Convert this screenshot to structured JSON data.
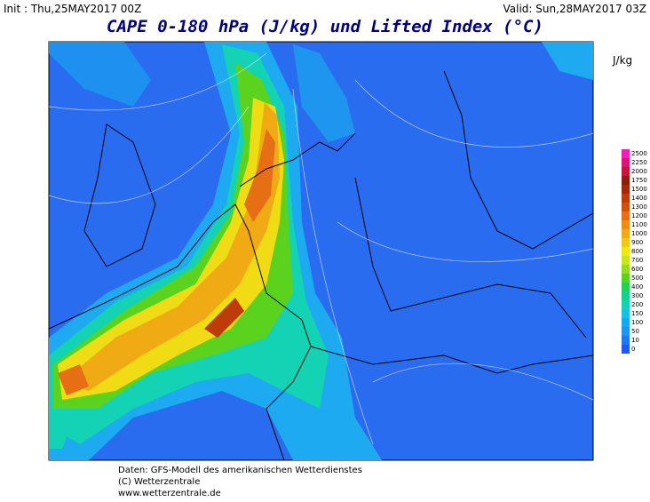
{
  "header": {
    "init": "Init : Thu,25MAY2017 00Z",
    "valid": "Valid: Sun,28MAY2017 03Z",
    "title": "CAPE 0-180 hPa (J/kg) und Lifted Index (°C)"
  },
  "legend": {
    "unit": "J/kg",
    "levels": [
      "0",
      "10",
      "50",
      "100",
      "150",
      "200",
      "300",
      "400",
      "500",
      "600",
      "700",
      "800",
      "900",
      "1000",
      "1100",
      "1200",
      "1300",
      "1400",
      "1500",
      "1750",
      "2000",
      "2250",
      "2500"
    ],
    "colors": [
      "#1e5af0",
      "#1e78f0",
      "#1e96f0",
      "#14aaf0",
      "#14c3e6",
      "#14d2b4",
      "#14d28c",
      "#1ed25a",
      "#5ad21e",
      "#96dc1e",
      "#c8e61e",
      "#f0e614",
      "#f0c814",
      "#f0aa14",
      "#f08c14",
      "#e66e14",
      "#d2500a",
      "#be3c0a",
      "#a5280a",
      "#8c1e0a",
      "#c8143c",
      "#dc1478",
      "#f01eb4"
    ]
  },
  "footer": {
    "lines": [
      "Daten: GFS-Modell des amerikanischen Wetterdienstes",
      "(C) Wetterzentrale",
      "www.wetterzentrale.de"
    ]
  }
}
